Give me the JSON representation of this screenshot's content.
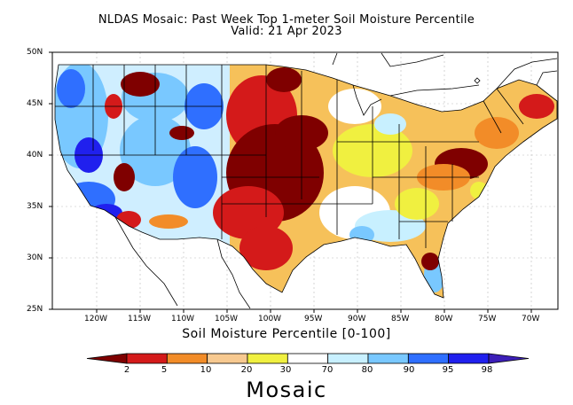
{
  "title": {
    "line1": "NLDAS Mosaic: Past Week Top 1-meter Soil Moisture Percentile",
    "line2": "Valid: 21 Apr 2023"
  },
  "axes": {
    "lat_ticks": [
      "50N",
      "45N",
      "40N",
      "35N",
      "30N",
      "25N"
    ],
    "lon_ticks": [
      "120W",
      "115W",
      "110W",
      "105W",
      "100W",
      "95W",
      "90W",
      "85W",
      "80W",
      "75W",
      "70W"
    ],
    "lon_range": [
      -125,
      -67
    ],
    "lat_range": [
      25,
      50
    ]
  },
  "colorbar": {
    "label": "Soil Moisture Percentile [0-100]",
    "boundaries": [
      "2",
      "5",
      "10",
      "20",
      "30",
      "70",
      "80",
      "90",
      "95",
      "98"
    ],
    "colors": [
      "#7f0000",
      "#d41a1a",
      "#f28c28",
      "#f7c990",
      "#f0f040",
      "#ffffff",
      "#c8f0ff",
      "#79c8ff",
      "#2f6fff",
      "#2020ee",
      "#3c1fb8"
    ]
  },
  "model": "Mosaic"
}
